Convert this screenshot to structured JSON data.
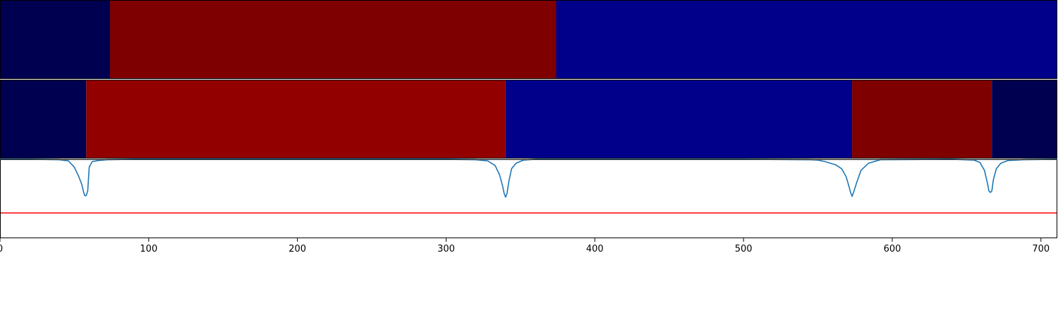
{
  "chart_data": [
    {
      "type": "heatmap",
      "title": "",
      "xlim": [
        0,
        711
      ],
      "segments": [
        {
          "start": 0,
          "end": 74,
          "color": "#000050"
        },
        {
          "start": 74,
          "end": 374,
          "color": "#7f0000"
        },
        {
          "start": 374,
          "end": 711,
          "color": "#00008b"
        }
      ]
    },
    {
      "type": "heatmap",
      "title": "",
      "xlim": [
        0,
        711
      ],
      "segments": [
        {
          "start": 0,
          "end": 58,
          "color": "#000050"
        },
        {
          "start": 58,
          "end": 340,
          "color": "#920000"
        },
        {
          "start": 340,
          "end": 573,
          "color": "#00008b"
        },
        {
          "start": 573,
          "end": 667,
          "color": "#7f0000"
        },
        {
          "start": 667,
          "end": 711,
          "color": "#000050"
        }
      ]
    },
    {
      "type": "line",
      "title": "",
      "xlabel": "",
      "ylabel": "",
      "xlim": [
        0,
        711
      ],
      "ylim": [
        0,
        1
      ],
      "x_ticks": [
        0,
        100,
        200,
        300,
        400,
        500,
        600,
        700
      ],
      "threshold": {
        "value": 0.32,
        "color": "#ff0000"
      },
      "series": [
        {
          "color": "#1f77b4",
          "x": [
            0,
            20,
            40,
            46,
            50,
            53,
            55,
            56,
            57,
            58,
            59,
            60,
            62,
            66,
            72,
            90,
            300,
            320,
            328,
            333,
            336,
            338,
            339,
            340,
            341,
            342,
            344,
            347,
            352,
            360,
            500,
            545,
            550,
            555,
            562,
            566,
            569,
            571,
            572,
            573,
            574,
            576,
            579,
            584,
            592,
            640,
            655,
            659,
            662,
            664,
            665,
            666,
            667,
            668,
            670,
            673,
            678,
            688,
            711
          ],
          "y": [
            1.0,
            1.0,
            0.995,
            0.98,
            0.9,
            0.78,
            0.68,
            0.6,
            0.54,
            0.54,
            0.6,
            0.9,
            0.97,
            0.985,
            0.995,
            1.0,
            1.0,
            0.995,
            0.98,
            0.92,
            0.8,
            0.66,
            0.57,
            0.52,
            0.57,
            0.7,
            0.88,
            0.95,
            0.99,
            1.0,
            1.0,
            0.995,
            0.99,
            0.97,
            0.93,
            0.88,
            0.78,
            0.65,
            0.58,
            0.53,
            0.58,
            0.7,
            0.86,
            0.95,
            0.995,
            1.0,
            0.99,
            0.96,
            0.86,
            0.7,
            0.6,
            0.58,
            0.6,
            0.74,
            0.88,
            0.95,
            0.985,
            0.995,
            1.0
          ]
        }
      ]
    }
  ]
}
